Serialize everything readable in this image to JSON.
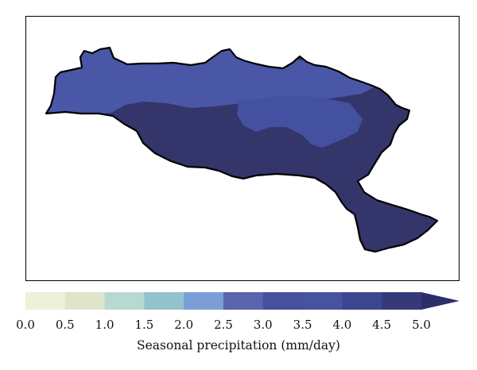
{
  "colorbar": {
    "label": "Seasonal precipitation (mm/day)",
    "ticks": [
      "0.0",
      "0.5",
      "1.0",
      "1.5",
      "2.0",
      "2.5",
      "3.0",
      "3.5",
      "4.0",
      "4.5",
      "5.0"
    ],
    "colors": [
      "#eef0db",
      "#dee5c9",
      "#b6d9d1",
      "#92c3cc",
      "#7c9ed6",
      "#5864ad",
      "#46509c",
      "#4653a0",
      "#3c4590",
      "#35397a"
    ],
    "extend": "max",
    "extend_color": "#2a2f6b"
  },
  "map": {
    "region_colors": {
      "dominant": "#33356b",
      "north_band": "#4a57a6",
      "mid_patch": "#4450a0",
      "outline": "#000000"
    }
  }
}
